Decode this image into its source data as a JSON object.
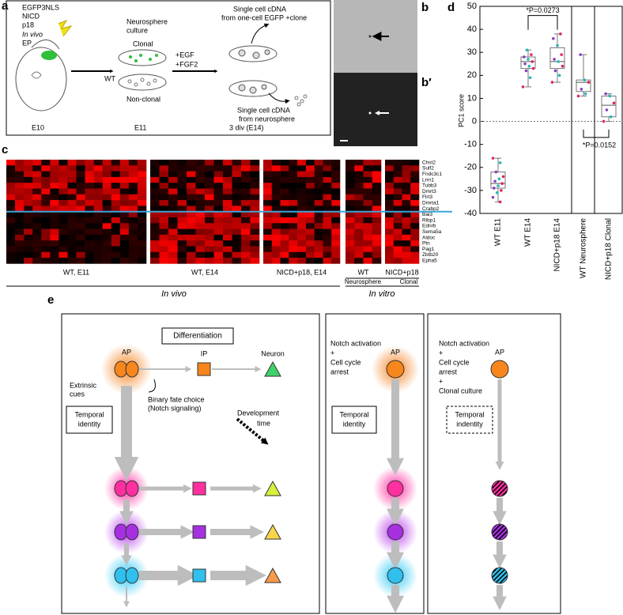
{
  "panel_a": {
    "label": "a",
    "construct": [
      "EGFP3NLS",
      "NICD",
      "p18"
    ],
    "in_vivo": "In vivo",
    "ep": "EP",
    "culture": [
      "Neurosphere",
      "culture"
    ],
    "clonal": "Clonal",
    "wt": "WT",
    "non_clonal": "Non-clonal",
    "factors": [
      "+EGF",
      "+FGF2"
    ],
    "clone_cdna": [
      "Single cell cDNA",
      "from one-cell EGFP +clone"
    ],
    "sphere_cdna": [
      "Single cell cDNA",
      "from neurosphere"
    ],
    "stages": [
      "E10",
      "E11",
      "3 div (E14)"
    ]
  },
  "panel_b": {
    "label": "b",
    "label2": "b′"
  },
  "panel_c": {
    "label": "c",
    "genes": [
      "Chst2",
      "Sulf2",
      "Fndc3c1",
      "Lrrn1",
      "Tubb3",
      "Dmrt3",
      "Flrt3",
      "Dmrta1",
      "Crabp2",
      "Bai3",
      "Rlbp1",
      "Ednrb",
      "Sema5a",
      "Aldoc",
      "Ptn",
      "Pag1",
      "Zbtb20",
      "Epha5"
    ],
    "groups": [
      "WT, E11",
      "WT, E14",
      "NICD+p18, E14",
      "WT",
      "NICD+p18"
    ],
    "subgroups": [
      "Neurosphere",
      "Clonal"
    ],
    "sections": [
      "In vivo",
      "In vitro"
    ]
  },
  "chart_data": {
    "type": "box",
    "panel_label": "d",
    "ylabel": "PC1 score",
    "categories": [
      "WT E11",
      "WT E14",
      "NICD+p18 E14",
      "WT Neurosphere",
      "NICD+p18 Clonal"
    ],
    "groups": [
      {
        "min": -35,
        "q1": -29,
        "median": -27,
        "q3": -22,
        "max": -16,
        "points": [
          -16,
          -18,
          -22,
          -24,
          -25,
          -26,
          -27,
          -28,
          -29,
          -30,
          -31,
          -33,
          -35
        ]
      },
      {
        "min": 15,
        "q1": 23,
        "median": 26,
        "q3": 28,
        "max": 31,
        "points": [
          15,
          19,
          22,
          23,
          24,
          25,
          26,
          27,
          28,
          29,
          31
        ]
      },
      {
        "min": 17,
        "q1": 23,
        "median": 26,
        "q3": 32,
        "max": 38,
        "points": [
          17,
          20,
          22,
          24,
          26,
          27,
          29,
          33,
          36,
          38
        ]
      },
      {
        "min": 11,
        "q1": 13,
        "median": 17,
        "q3": 18,
        "max": 29,
        "points": [
          11,
          12,
          14,
          17,
          18,
          29
        ]
      },
      {
        "min": 0,
        "q1": 2,
        "median": 7,
        "q3": 11,
        "max": 12,
        "points": [
          0,
          2,
          5,
          8,
          11,
          12
        ]
      }
    ],
    "point_colors": [
      "#e0245e",
      "#2bb5b5",
      "#8a3fbf"
    ],
    "annotations": [
      "*P=0.0273",
      "*P=0.0152"
    ],
    "ylim": [
      -40,
      50
    ],
    "yticks": [
      -40,
      -30,
      -20,
      -10,
      0,
      10,
      20,
      30,
      40,
      50
    ]
  },
  "panel_e": {
    "label": "e",
    "differentiation": "Differentiation",
    "ap": "AP",
    "ip": "IP",
    "neuron": "Neuron",
    "extrinsic": [
      "Extrinsic",
      "cues"
    ],
    "binary": [
      "Binary fate choice",
      "(Notch signaling)"
    ],
    "temporal": [
      "Temporal",
      "identity"
    ],
    "dev_time": [
      "Development",
      "time"
    ],
    "middle": {
      "condition": [
        "Notch activation",
        "+",
        "Cell cycle",
        "arrest"
      ],
      "ap": "AP",
      "temporal": [
        "Temporal",
        "identity"
      ]
    },
    "right": {
      "condition": [
        "Notch activation",
        "+",
        "Cell cycle",
        "arrest",
        "+",
        "Clonal culture"
      ],
      "ap": "AP",
      "temporal": [
        "Temporal",
        "indentity"
      ]
    }
  }
}
